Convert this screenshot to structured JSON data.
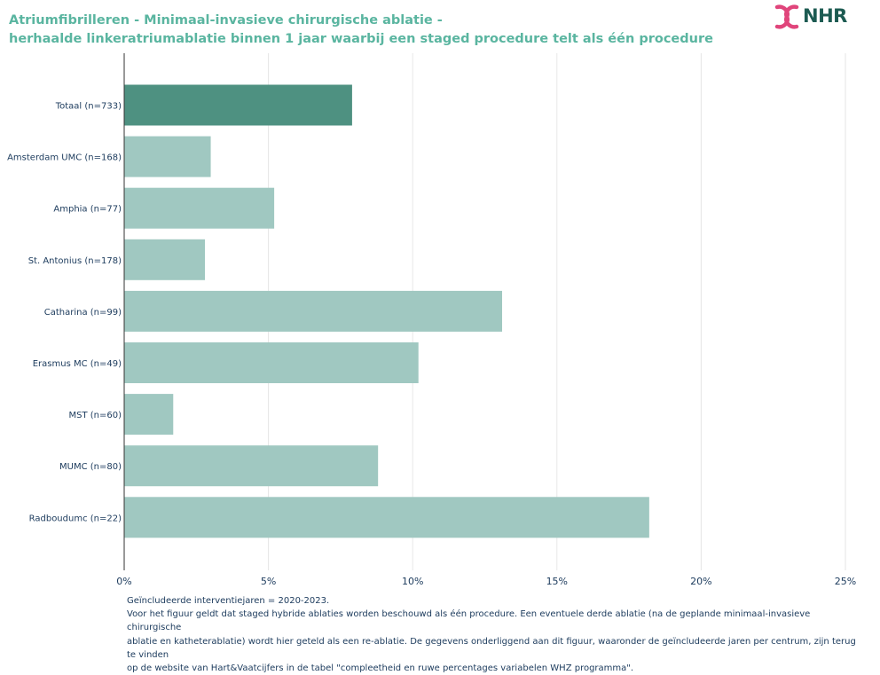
{
  "title_lines": [
    "Atriumfibrilleren - Minimaal-invasieve chirurgische ablatie -",
    "herhaalde linkeratriumablatie binnen 1 jaar waarbij een staged procedure telt als één procedure"
  ],
  "logo": {
    "text": "NHR",
    "icon": "nhr-ribbon-icon",
    "icon_color": "#e0457b",
    "text_color": "#1d5b52"
  },
  "chart_data": {
    "type": "bar",
    "orientation": "horizontal",
    "categories": [
      "Totaal (n=733)",
      "Amsterdam UMC (n=168)",
      "Amphia (n=77)",
      "St. Antonius (n=178)",
      "Catharina (n=99)",
      "Erasmus MC (n=49)",
      "MST (n=60)",
      "MUMC (n=80)",
      "Radboudumc (n=22)"
    ],
    "values": [
      7.9,
      3.0,
      5.2,
      2.8,
      13.1,
      10.2,
      1.7,
      8.8,
      18.2
    ],
    "xlim": [
      0,
      25
    ],
    "xticks": [
      "0%",
      "5%",
      "10%",
      "15%",
      "20%",
      "25%"
    ],
    "grid": true,
    "colors": {
      "total": "#4e9181",
      "centers": "#a0c8c1",
      "axis": "#333333",
      "grid": "#e6e6e6",
      "labels": "#1b3a5c"
    }
  },
  "footnote": [
    "Geïncludeerde interventiejaren = 2020-2023.",
    "Voor het figuur geldt dat staged hybride ablaties worden beschouwd als één procedure. Een eventuele derde ablatie (na de geplande minimaal-invasieve chirurgische",
    "ablatie en katheterablatie) wordt hier geteld als een re-ablatie. De gegevens onderliggend aan dit figuur, waaronder de geïncludeerde jaren per centrum, zijn terug te vinden",
    "op de website van Hart&Vaatcijfers in de tabel \"compleetheid en ruwe percentages variabelen WHZ programma\"."
  ]
}
